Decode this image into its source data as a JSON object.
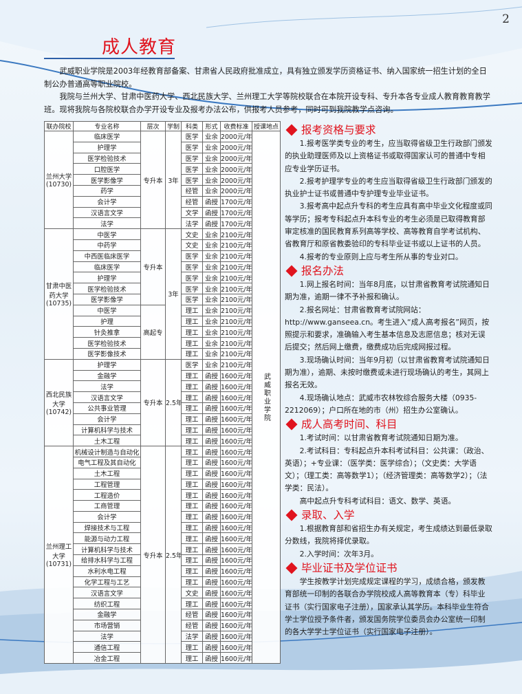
{
  "page_number": "2",
  "title": "成人教育",
  "intro": [
    "武威职业学院是2003年经教育部备案、甘肃省人民政府批准成立，具有独立颁发学历资格证书、纳入国家统一招生计划的全日制公办普通高等职业院校。",
    "我院与兰州大学、甘肃中医药大学、西北民族大学、兰州理工大学等院校联合在本院开设专科、专升本各专业成人教育教育教学班。现将我院与各院校联合办学开设专业及报考办法公布，供报考人员参考，同时可到我院教学点咨询。"
  ],
  "table": {
    "headers": [
      "联办院校",
      "专业名称",
      "层次",
      "学制",
      "科类",
      "形式",
      "收费标准",
      "授课地点"
    ],
    "location": "武威职业学院",
    "groups": [
      {
        "school": [
          "兰州大学",
          "(10730)"
        ],
        "duration": "3年",
        "sections": [
          {
            "level": "专升本",
            "rows": [
              [
                "临床医学",
                "医学",
                "业余",
                "2000元/年"
              ],
              [
                "护理学",
                "医学",
                "业余",
                "2000元/年"
              ],
              [
                "医学检验技术",
                "医学",
                "业余",
                "2000元/年"
              ],
              [
                "口腔医学",
                "医学",
                "业余",
                "2000元/年"
              ],
              [
                "医学影像学",
                "医学",
                "业余",
                "2000元/年"
              ],
              [
                "药学",
                "经管",
                "业余",
                "2000元/年"
              ],
              [
                "会计学",
                "经管",
                "函授",
                "1700元/年"
              ],
              [
                "汉语言文学",
                "文学",
                "函授",
                "1700元/年"
              ],
              [
                "法学",
                "法学",
                "函授",
                "1700元/年"
              ]
            ]
          }
        ]
      },
      {
        "school": [
          "甘肃中医",
          "药大学",
          "(10735)"
        ],
        "duration": "3年",
        "sections": [
          {
            "level": "专升本",
            "rows": [
              [
                "中医学",
                "文史",
                "业余",
                "2100元/年"
              ],
              [
                "中药学",
                "文史",
                "业余",
                "2100元/年"
              ],
              [
                "中西医临床医学",
                "医学",
                "业余",
                "2100元/年"
              ],
              [
                "临床医学",
                "医学",
                "业余",
                "2100元/年"
              ],
              [
                "护理学",
                "医学",
                "业余",
                "2100元/年"
              ],
              [
                "医学检验技术",
                "医学",
                "业余",
                "2100元/年"
              ],
              [
                "医学影像学",
                "医学",
                "业余",
                "2100元/年"
              ]
            ]
          },
          {
            "level": "高起专",
            "rows": [
              [
                "中医学",
                "理工",
                "业余",
                "2100元/年"
              ],
              [
                "护理",
                "理工",
                "业余",
                "2100元/年"
              ],
              [
                "针灸推拿",
                "理工",
                "业余",
                "2100元/年"
              ],
              [
                "医学检验技术",
                "理工",
                "业余",
                "2100元/年"
              ],
              [
                "医学影像技术",
                "理工",
                "业余",
                "2100元/年"
              ]
            ]
          }
        ]
      },
      {
        "school": [
          "西北民族",
          "大学",
          "(10742)"
        ],
        "duration": "2.5年",
        "sections": [
          {
            "level": "专升本",
            "rows": [
              [
                "护理学",
                "医学",
                "业余",
                "2100元/年"
              ],
              [
                "金融学",
                "理工",
                "函授",
                "1600元/年"
              ],
              [
                "法学",
                "理工",
                "函授",
                "1600元/年"
              ],
              [
                "汉语言文学",
                "理工",
                "函授",
                "1600元/年"
              ],
              [
                "公共事业管理",
                "理工",
                "函授",
                "1600元/年"
              ],
              [
                "会计学",
                "理工",
                "函授",
                "1600元/年"
              ],
              [
                "计算机科学与技术",
                "理工",
                "函授",
                "1600元/年"
              ],
              [
                "土木工程",
                "理工",
                "函授",
                "1600元/年"
              ]
            ]
          }
        ]
      },
      {
        "school": [
          "兰州理工",
          "大学",
          "(10731)"
        ],
        "duration": "2.5年",
        "sections": [
          {
            "level": "专升本",
            "rows": [
              [
                "机械设计制造与自动化",
                "理工",
                "函授",
                "1600元/年"
              ],
              [
                "电气工程及其自动化",
                "理工",
                "函授",
                "1600元/年"
              ],
              [
                "土木工程",
                "理工",
                "函授",
                "1600元/年"
              ],
              [
                "工程管理",
                "理工",
                "函授",
                "1600元/年"
              ],
              [
                "工程造价",
                "理工",
                "函授",
                "1600元/年"
              ],
              [
                "工商管理",
                "理工",
                "函授",
                "1600元/年"
              ],
              [
                "会计学",
                "理工",
                "函授",
                "1600元/年"
              ],
              [
                "焊接技术与工程",
                "理工",
                "函授",
                "1600元/年"
              ],
              [
                "能源与动力工程",
                "理工",
                "函授",
                "1600元/年"
              ],
              [
                "计算机科学与技术",
                "理工",
                "函授",
                "1600元/年"
              ],
              [
                "给排水科学与工程",
                "理工",
                "函授",
                "1600元/年"
              ],
              [
                "水利水电工程",
                "理工",
                "函授",
                "1600元/年"
              ],
              [
                "化学工程与工艺",
                "理工",
                "函授",
                "1600元/年"
              ],
              [
                "汉语言文学",
                "文史",
                "函授",
                "1600元/年"
              ],
              [
                "纺织工程",
                "理工",
                "函授",
                "1600元/年"
              ],
              [
                "金融学",
                "经管",
                "函授",
                "1600元/年"
              ],
              [
                "市场营销",
                "经管",
                "函授",
                "1600元/年"
              ],
              [
                "法学",
                "法学",
                "函授",
                "1600元/年"
              ],
              [
                "通信工程",
                "理工",
                "函授",
                "1600元/年"
              ],
              [
                "冶金工程",
                "理工",
                "函授",
                "1600元/年"
              ]
            ]
          }
        ]
      }
    ]
  },
  "sections": [
    {
      "heading": "报考资格与要求",
      "paragraphs": [
        "1.报考医学类专业的考生，应当取得省级卫生行政部门颁发的执业助理医师及以上资格证书或取得国家认可的普通中专相应专业学历证书。",
        "2.报考护理学专业的考生应当取得省级卫生行政部门颁发的执业护士证书或普通中专护理专业毕业证书。",
        "3.报考高中起点升专科的考生应具有高中毕业文化程度或同等学历；报考专科起点升本科专业的考生必须是已取得教育部审定核准的国民教育系列高等学校、高等教育自学考试机构、省教育厅和原省教委验印的专科毕业证书或以上证书的人员。",
        "4.报考的专业原则上应与考生所从事的专业对口。"
      ]
    },
    {
      "heading": "报名办法",
      "paragraphs": [
        "1.网上报名时间：当年8月底，以甘肃省教育考试院通知日期为准，逾期一律不予补报和确认。",
        "2.报名网址：甘肃省教育考试院网站：http://www.ganseea.cn。考生进入“成人高考报名”网页，按照提示和要求，准确输入考生基本信息及志愿信息；核对无误后提交；然后网上缴费，缴费成功后完成网报过程。",
        "3.现场确认时间：当年9月初（以甘肃省教育考试院通知日期为准），逾期、未按时缴费或未进行现场确认的考生，其网上报名无效。",
        "4.现场确认地点：武威市农林牧综合服务大楼（0935-2212069）；户口所在地的市（州）招生办公室确认。"
      ]
    },
    {
      "heading": "成人高考时间、科目",
      "paragraphs": [
        "1.考试时间：以甘肃省教育考试院通知日期为准。",
        "2.考试科目：专科起点升本科考试科目：公共课：（政治、英语）；+专业课：（医学类：医学综合）；（文史类：大学语文）；（理工类：高等数学1）；（经济管理类：高等数学2）；（法学类：民法）。",
        "高中起点升专科考试科目：语文、数学、英语。"
      ]
    },
    {
      "heading": "录取、入学",
      "paragraphs": [
        "1.根据教育部和省招生办有关规定，考生成绩达到最低录取分数线，我院将择优录取。",
        "2.入学时间：次年3月。"
      ]
    },
    {
      "heading": "毕业证书及学位证书",
      "paragraphs": [
        "学生按教学计划完成规定课程的学习，成绩合格，颁发教育部统一印制的各联合办学院校成人高等教育本（专）科毕业证书（实行国家电子注册），国家承认其学历。本科毕业生符合学士学位授予条件者，颁发国务院学位委员会办公室统一印制的各大学学士学位证书（实行国家电子注册）。"
      ]
    }
  ],
  "colors": {
    "heading": "#e0141e",
    "title_underline": "#2c5fa8"
  }
}
